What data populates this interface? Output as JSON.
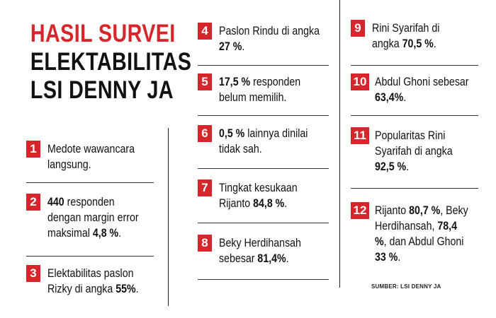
{
  "accent_color": "#d7262b",
  "title": {
    "line1": "HASIL SURVEI",
    "line2": "ELEKTABILITAS",
    "line3": "LSI DENNY JA"
  },
  "items": [
    {
      "num": "1",
      "lines": [
        [
          [
            "Medote wawancara",
            false
          ]
        ],
        [
          [
            "langsung.",
            false
          ]
        ]
      ]
    },
    {
      "num": "2",
      "lines": [
        [
          [
            "440",
            true
          ],
          [
            " responden",
            false
          ]
        ],
        [
          [
            "dengan margin error",
            false
          ]
        ],
        [
          [
            "maksimal ",
            false
          ],
          [
            "4,8 %",
            true
          ],
          [
            ".",
            false
          ]
        ]
      ]
    },
    {
      "num": "3",
      "lines": [
        [
          [
            "Elektabilitas paslon",
            false
          ]
        ],
        [
          [
            "Rizky di angka ",
            false
          ],
          [
            "55%",
            true
          ],
          [
            ".",
            false
          ]
        ]
      ]
    },
    {
      "num": "4",
      "lines": [
        [
          [
            "Paslon Rindu di angka",
            false
          ]
        ],
        [
          [
            "27 %",
            true
          ],
          [
            ".",
            false
          ]
        ]
      ]
    },
    {
      "num": "5",
      "lines": [
        [
          [
            "17,5 %",
            true
          ],
          [
            " responden",
            false
          ]
        ],
        [
          [
            "belum memilih.",
            false
          ]
        ]
      ]
    },
    {
      "num": "6",
      "lines": [
        [
          [
            "0,5 %",
            true
          ],
          [
            " lainnya dinilai",
            false
          ]
        ],
        [
          [
            "tidak sah.",
            false
          ]
        ]
      ]
    },
    {
      "num": "7",
      "lines": [
        [
          [
            "Tingkat kesukaan",
            false
          ]
        ],
        [
          [
            "Rijanto ",
            false
          ],
          [
            "84,8 %",
            true
          ],
          [
            ".",
            false
          ]
        ]
      ]
    },
    {
      "num": "8",
      "lines": [
        [
          [
            "Beky Herdihansah",
            false
          ]
        ],
        [
          [
            "sebesar ",
            false
          ],
          [
            "81,4%",
            true
          ],
          [
            ".",
            false
          ]
        ]
      ]
    },
    {
      "num": "9",
      "lines": [
        [
          [
            "Rini Syarifah di",
            false
          ]
        ],
        [
          [
            "angka ",
            false
          ],
          [
            "70,5 %",
            true
          ],
          [
            ".",
            false
          ]
        ]
      ]
    },
    {
      "num": "10",
      "lines": [
        [
          [
            "Abdul Ghoni sebesar",
            false
          ]
        ],
        [
          [
            "63,4%",
            true
          ],
          [
            ".",
            false
          ]
        ]
      ]
    },
    {
      "num": "11",
      "lines": [
        [
          [
            "Popularitas Rini",
            false
          ]
        ],
        [
          [
            "Syarifah di angka",
            false
          ]
        ],
        [
          [
            "92,5 %",
            true
          ],
          [
            ".",
            false
          ]
        ]
      ]
    },
    {
      "num": "12",
      "lines": [
        [
          [
            "Rijanto ",
            false
          ],
          [
            "80,7 %",
            true
          ],
          [
            ", Beky",
            false
          ]
        ],
        [
          [
            "Herdihansah, ",
            false
          ],
          [
            "78,4",
            true
          ]
        ],
        [
          [
            "%",
            true
          ],
          [
            ", dan Abdul Ghoni",
            false
          ]
        ],
        [
          [
            "33 %",
            true
          ],
          [
            ".",
            false
          ]
        ]
      ]
    }
  ],
  "source": "SUMBER: LSI DENNY JA"
}
